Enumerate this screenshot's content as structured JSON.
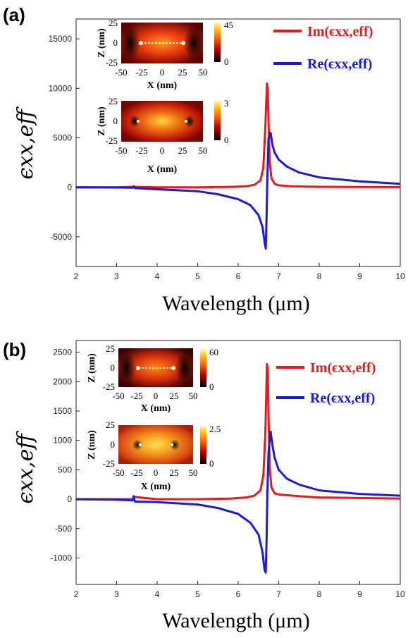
{
  "chart_data": [
    {
      "type": "line",
      "panel_label": "(a)",
      "xlabel": "Wavelength (μm)",
      "ylabel": "ϵxx,eff",
      "xlim": [
        2,
        10
      ],
      "ylim": [
        -8000,
        17000
      ],
      "xticks": [
        2,
        3,
        4,
        5,
        6,
        7,
        8,
        9,
        10
      ],
      "yticks": [
        -5000,
        0,
        5000,
        10000,
        15000
      ],
      "ytick_labels": [
        "-5000",
        "0",
        "5000",
        "10000",
        "15000"
      ],
      "legend_position": "top-right",
      "series": [
        {
          "name": "Im(ϵxx,eff)",
          "color": "#e8191c",
          "x": [
            2.0,
            3.0,
            3.4,
            4.0,
            5.0,
            5.8,
            6.2,
            6.4,
            6.55,
            6.62,
            6.67,
            6.71,
            6.73,
            6.75,
            6.78,
            6.82,
            6.9,
            7.0,
            7.3,
            8.0,
            9.0,
            10.0
          ],
          "y": [
            0,
            0,
            50,
            0,
            0,
            40,
            100,
            250,
            700,
            2000,
            6000,
            10500,
            9800,
            6500,
            2500,
            900,
            350,
            200,
            100,
            50,
            30,
            20
          ]
        },
        {
          "name": "Re(ϵxx,eff)",
          "color": "#1b1bd0",
          "x": [
            2.0,
            3.0,
            3.4,
            3.42,
            3.45,
            4.0,
            5.0,
            5.5,
            6.0,
            6.3,
            6.5,
            6.6,
            6.65,
            6.68,
            6.7,
            6.72,
            6.75,
            6.8,
            6.85,
            6.9,
            7.0,
            7.2,
            7.5,
            8.0,
            9.0,
            10.0
          ],
          "y": [
            0,
            -20,
            -40,
            100,
            -80,
            -200,
            -400,
            -700,
            -1200,
            -1800,
            -2800,
            -4000,
            -5500,
            -6200,
            -3000,
            1000,
            5000,
            5500,
            4200,
            3500,
            2800,
            2100,
            1500,
            1000,
            600,
            350
          ]
        }
      ],
      "insets": [
        {
          "xlabel": "X (nm)",
          "ylabel": "Z (nm)",
          "xticks": [
            "-50",
            "-25",
            "0",
            "25",
            "50"
          ],
          "yticks": [
            "25",
            "0",
            "-25"
          ],
          "colorbar": [
            "45",
            "0"
          ]
        },
        {
          "xlabel": "X (nm)",
          "ylabel": "Z (nm)",
          "xticks": [
            "-50",
            "-25",
            "0",
            "25",
            "50"
          ],
          "yticks": [
            "25",
            "0",
            "-25"
          ],
          "colorbar": [
            "3",
            "0"
          ]
        }
      ]
    },
    {
      "type": "line",
      "panel_label": "(b)",
      "xlabel": "Wavelength (μm)",
      "ylabel": "ϵxx,eff",
      "xlim": [
        2,
        10
      ],
      "ylim": [
        -1450,
        2700
      ],
      "xticks": [
        2,
        3,
        4,
        5,
        6,
        7,
        8,
        9,
        10
      ],
      "yticks": [
        -1000,
        -500,
        0,
        500,
        1000,
        1500,
        2000,
        2500
      ],
      "ytick_labels": [
        "-1000",
        "-500",
        "0",
        "500",
        "1000",
        "1500",
        "2000",
        "2500"
      ],
      "legend_position": "top-right",
      "series": [
        {
          "name": "Im(ϵxx,eff)",
          "color": "#e8191c",
          "x": [
            2.0,
            3.0,
            3.4,
            3.42,
            4.0,
            5.0,
            5.8,
            6.2,
            6.4,
            6.55,
            6.62,
            6.67,
            6.71,
            6.73,
            6.75,
            6.78,
            6.82,
            6.9,
            7.0,
            7.5,
            8.0,
            9.0,
            10.0
          ],
          "y": [
            0,
            0,
            0,
            40,
            0,
            0,
            10,
            30,
            60,
            150,
            400,
            1100,
            2300,
            2200,
            1400,
            500,
            200,
            100,
            80,
            50,
            30,
            20,
            10
          ]
        },
        {
          "name": "Re(ϵxx,eff)",
          "color": "#1b1bd0",
          "x": [
            2.0,
            3.0,
            3.4,
            3.42,
            3.45,
            4.0,
            5.0,
            5.5,
            6.0,
            6.3,
            6.5,
            6.6,
            6.65,
            6.68,
            6.7,
            6.72,
            6.75,
            6.8,
            6.85,
            6.9,
            7.0,
            7.2,
            7.5,
            8.0,
            9.0,
            10.0
          ],
          "y": [
            0,
            -10,
            -20,
            50,
            -40,
            -50,
            -90,
            -150,
            -250,
            -400,
            -600,
            -900,
            -1200,
            -1250,
            -700,
            100,
            800,
            1150,
            900,
            700,
            500,
            350,
            250,
            150,
            90,
            60
          ]
        }
      ],
      "insets": [
        {
          "xlabel": "X (nm)",
          "ylabel": "Z (nm)",
          "xticks": [
            "-50",
            "-25",
            "0",
            "25",
            "50"
          ],
          "yticks": [
            "25",
            "0",
            "-25"
          ],
          "colorbar": [
            "60",
            "0"
          ]
        },
        {
          "xlabel": "X (nm)",
          "ylabel": "Z (nm)",
          "xticks": [
            "-50",
            "-25",
            "0",
            "25",
            "50"
          ],
          "yticks": [
            "25",
            "0",
            "-25"
          ],
          "colorbar": [
            "2.5",
            "0"
          ]
        }
      ]
    }
  ]
}
